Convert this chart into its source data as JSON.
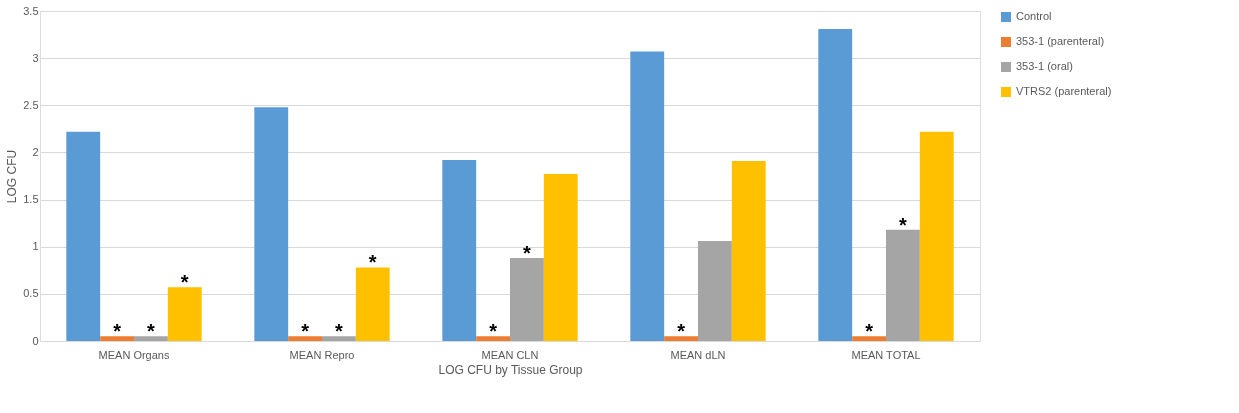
{
  "chart_data": {
    "type": "bar",
    "xlabel": "LOG CFU by Tissue Group",
    "ylabel": "LOG CFU",
    "categories": [
      "MEAN Organs",
      "MEAN Repro",
      "MEAN CLN",
      "MEAN dLN",
      "MEAN TOTAL"
    ],
    "series": [
      {
        "name": "Control",
        "color": "#5b9bd5",
        "values": [
          2.22,
          2.48,
          1.92,
          3.07,
          3.31
        ]
      },
      {
        "name": "353-1 (parenteral)",
        "color": "#ed7d31",
        "values": [
          0.05,
          0.05,
          0.05,
          0.05,
          0.05
        ],
        "value_labels": [
          "*",
          "*",
          "*",
          "*",
          "*"
        ]
      },
      {
        "name": "353-1 (oral)",
        "color": "#a5a5a5",
        "values": [
          0.05,
          0.05,
          0.88,
          1.06,
          1.18
        ],
        "value_labels": [
          "*",
          "*",
          "*",
          null,
          "*"
        ]
      },
      {
        "name": "VTRS2 (parenteral)",
        "color": "#ffc000",
        "values": [
          0.57,
          0.78,
          1.77,
          1.91,
          2.22
        ],
        "value_labels": [
          "*",
          "*",
          null,
          null,
          null
        ]
      }
    ],
    "ylim": [
      0,
      3.5
    ],
    "yticks": [
      0,
      0.5,
      1,
      1.5,
      2,
      2.5,
      3,
      3.5
    ],
    "grid": "y",
    "legend": "right"
  }
}
